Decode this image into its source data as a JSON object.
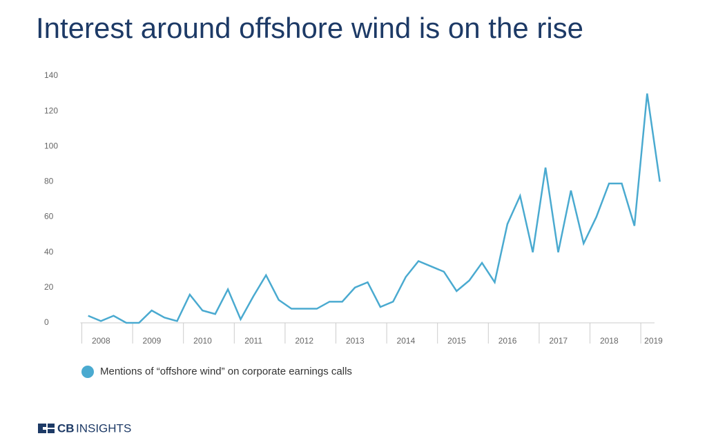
{
  "chart_data": {
    "type": "line",
    "title": "Interest around offshore wind is on the rise",
    "x_labels": [
      "2008",
      "2009",
      "2010",
      "2011",
      "2012",
      "2013",
      "2014",
      "2015",
      "2016",
      "2017",
      "2018",
      "2019"
    ],
    "series": [
      {
        "name": "Mentions of “offshore wind” on corporate earnings calls",
        "color": "#4aaad0",
        "values": [
          4,
          1,
          4,
          0,
          0,
          7,
          3,
          1,
          16,
          7,
          5,
          19,
          2,
          15,
          27,
          13,
          8,
          8,
          8,
          12,
          12,
          20,
          23,
          9,
          12,
          26,
          35,
          32,
          29,
          18,
          24,
          34,
          23,
          56,
          72,
          40,
          88,
          40,
          75,
          45,
          60,
          79,
          79,
          55,
          130,
          80
        ]
      }
    ],
    "ylim": [
      0,
      140
    ],
    "yticks": [
      0,
      20,
      40,
      60,
      80,
      100,
      120,
      140
    ],
    "grid": false,
    "legend": "bottom-left"
  },
  "footer": {
    "brand_bold": "CB",
    "brand_light": "INSIGHTS"
  }
}
